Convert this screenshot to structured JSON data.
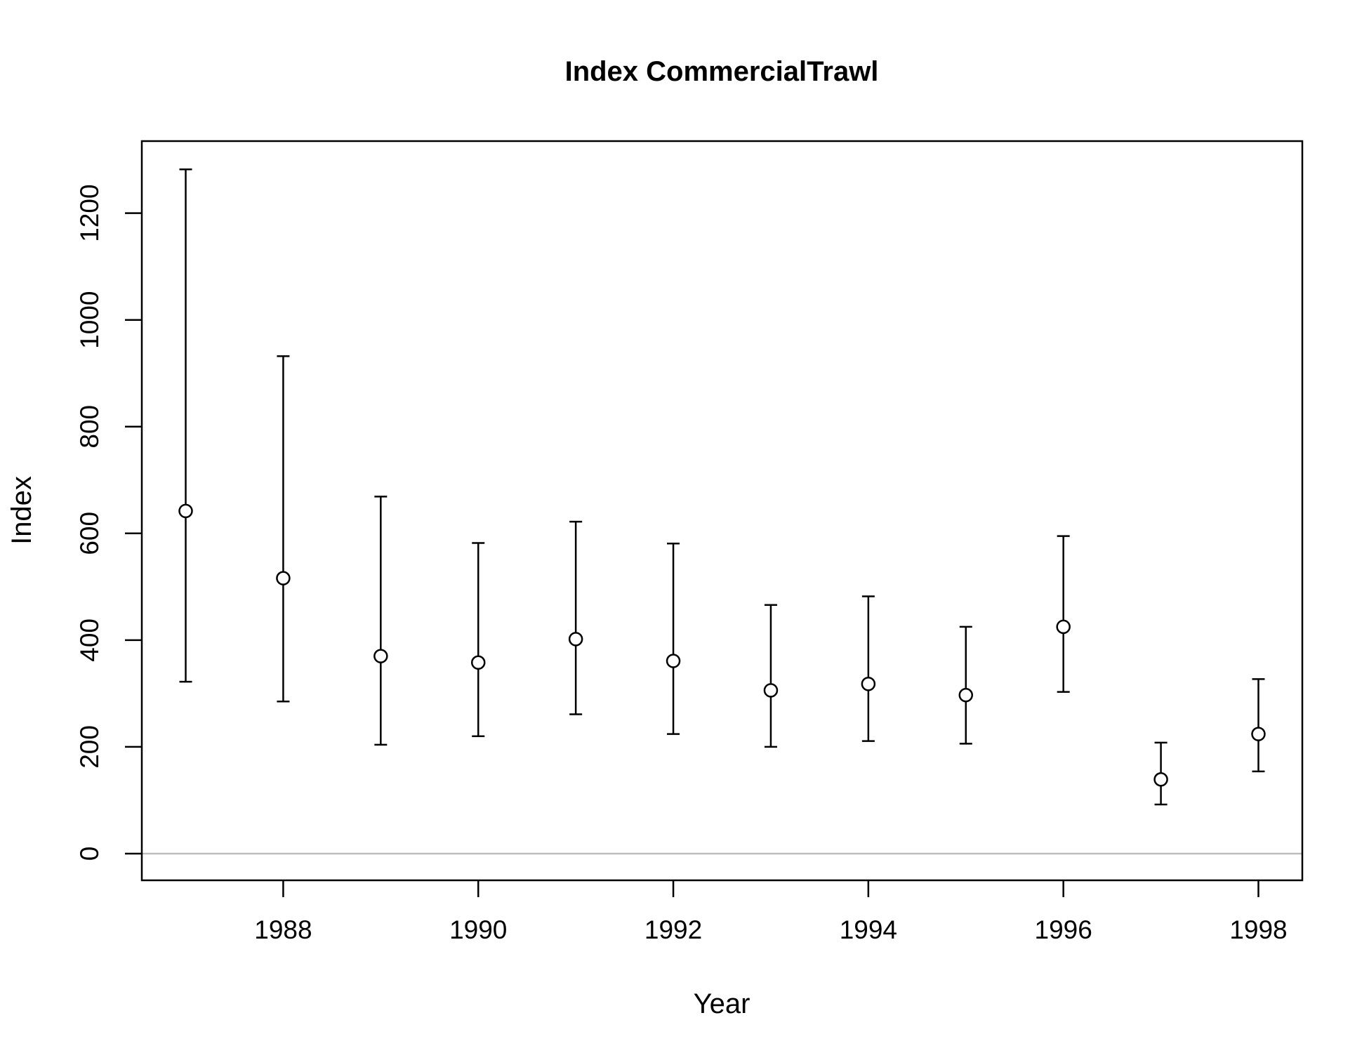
{
  "chart_data": {
    "type": "scatter",
    "title": "Index CommercialTrawl",
    "xlabel": "Year",
    "ylabel": "Index",
    "xlim": [
      1986.55,
      1998.45
    ],
    "ylim": [
      -50,
      1335
    ],
    "xticks": [
      1988,
      1990,
      1992,
      1994,
      1996,
      1998
    ],
    "yticks": [
      0,
      200,
      400,
      600,
      800,
      1000,
      1200
    ],
    "grid": false,
    "legend": "none",
    "reference_line": {
      "y": 0,
      "color": "#bebebe"
    },
    "series": [
      {
        "x": [
          1987,
          1988,
          1989,
          1990,
          1991,
          1992,
          1993,
          1994,
          1995,
          1996,
          1997,
          1998
        ],
        "y": [
          642,
          516,
          370,
          358,
          402,
          361,
          306,
          318,
          297,
          425,
          139,
          224
        ],
        "lower": [
          322,
          285,
          204,
          220,
          261,
          224,
          200,
          211,
          206,
          303,
          92,
          154
        ],
        "upper": [
          1282,
          932,
          669,
          582,
          622,
          581,
          466,
          482,
          425,
          595,
          208,
          327
        ],
        "marker": "open-circle",
        "color": "#000000"
      }
    ]
  }
}
